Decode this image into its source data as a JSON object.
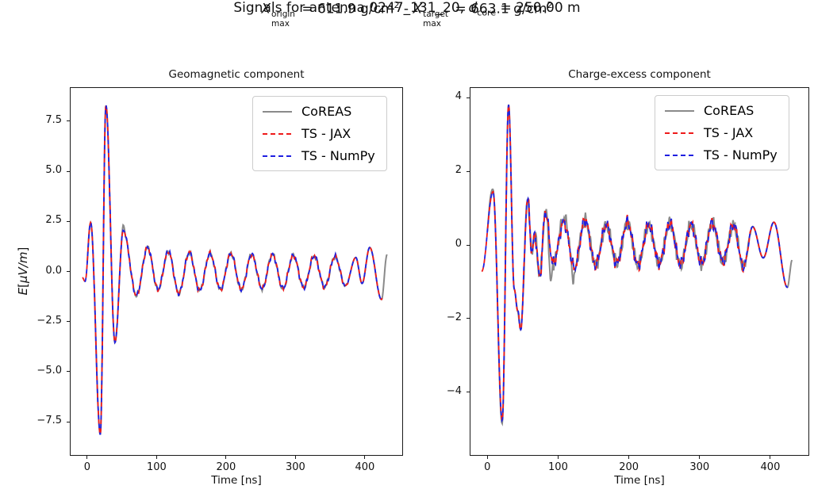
{
  "header": {
    "line1": {
      "text_before": "Signals for antenna 0247_131_20, ",
      "var": "d",
      "sub": "core",
      "text_after": " = 250.00 m"
    },
    "line2": {
      "var1": "X",
      "sup1": "origin",
      "sub1": "max",
      "eq1": " =  611.9 g/cm",
      "exp1": "2",
      "sep": "  -  ",
      "var2": "X",
      "sup2": "target",
      "sub2": "max",
      "eq2": " =  663.1 g/cm",
      "exp2": "2"
    }
  },
  "legend": {
    "entries": [
      {
        "label": "CoREAS",
        "color": "#8a8a8a",
        "style": "solid"
      },
      {
        "label": "TS - JAX",
        "color": "#ee1a1a",
        "style": "dashed"
      },
      {
        "label": "TS - NumPy",
        "color": "#1f1fe0",
        "style": "dashed"
      }
    ]
  },
  "chart_data": [
    {
      "type": "line",
      "title": "Geomagnetic component",
      "xlabel": "Time [ns]",
      "ylabel": "E[μV/m]",
      "ylabel_parts": {
        "e": "E",
        "open": "[",
        "mid": "μV/m",
        "close": "]"
      },
      "xlim": [
        -25,
        455
      ],
      "ylim": [
        -9.2,
        9.2
      ],
      "xtick_values": [
        0,
        100,
        200,
        300,
        400
      ],
      "xtick_labels": [
        "0",
        "100",
        "200",
        "300",
        "400"
      ],
      "ytick_values": [
        -7.5,
        -5.0,
        -2.5,
        0.0,
        2.5,
        5.0,
        7.5
      ],
      "ytick_labels": [
        "−7.5",
        "−5.0",
        "−2.5",
        "0.0",
        "2.5",
        "5.0",
        "7.5"
      ],
      "grid": false,
      "legend_position": "upper right",
      "keypoints": [
        [
          -7,
          -0.3
        ],
        [
          -3,
          -0.5
        ],
        [
          5,
          2.45
        ],
        [
          19,
          -8.15
        ],
        [
          27,
          8.3
        ],
        [
          40,
          -3.55
        ],
        [
          52,
          2.05
        ],
        [
          71,
          -1.2
        ],
        [
          87,
          1.2
        ],
        [
          102,
          -0.9
        ],
        [
          117,
          1.0
        ],
        [
          132,
          -1.1
        ],
        [
          147,
          0.95
        ],
        [
          162,
          -0.95
        ],
        [
          177,
          0.9
        ],
        [
          192,
          -0.9
        ],
        [
          207,
          0.9
        ],
        [
          222,
          -0.9
        ],
        [
          237,
          0.85
        ],
        [
          252,
          -0.85
        ],
        [
          267,
          0.85
        ],
        [
          282,
          -0.85
        ],
        [
          297,
          0.8
        ],
        [
          312,
          -0.8
        ],
        [
          327,
          0.78
        ],
        [
          342,
          -0.78
        ],
        [
          357,
          0.75
        ],
        [
          372,
          -0.72
        ],
        [
          387,
          0.7
        ],
        [
          396,
          -0.6
        ],
        [
          407,
          1.2
        ],
        [
          424,
          -1.4
        ],
        [
          432,
          0.85
        ]
      ],
      "gray_delta": [
        [
          0,
          0
        ],
        [
          49,
          0
        ],
        [
          52,
          0.25
        ],
        [
          55,
          0
        ]
      ],
      "noise": {
        "amplitude": 0.15,
        "window": [
          40,
          360
        ],
        "fade": 25
      },
      "series": [
        {
          "name": "CoREAS",
          "color": "#8a8a8a",
          "style": "solid",
          "width": 2.0,
          "t_range": [
            0,
            432
          ],
          "seed": 1.7,
          "use_delta": true
        },
        {
          "name": "TS - JAX",
          "color": "#ee1a1a",
          "style": "dashed",
          "width": 1.8,
          "t_range": [
            -7,
            425
          ],
          "seed": 4.2,
          "use_delta": false
        },
        {
          "name": "TS - NumPy",
          "color": "#1f1fe0",
          "style": "dashed",
          "width": 1.8,
          "t_range": [
            -7,
            425
          ],
          "seed": 4.2,
          "use_delta": false,
          "dash_offset": 5.5
        }
      ]
    },
    {
      "type": "line",
      "title": "Charge-excess component",
      "xlabel": "Time [ns]",
      "ylabel": "",
      "xlim": [
        -25,
        455
      ],
      "ylim": [
        -5.73,
        4.29
      ],
      "xtick_values": [
        0,
        100,
        200,
        300,
        400
      ],
      "xtick_labels": [
        "0",
        "100",
        "200",
        "300",
        "400"
      ],
      "ytick_values": [
        -4,
        -2,
        0,
        2,
        4
      ],
      "ytick_labels": [
        "−4",
        "−2",
        "0",
        "2",
        "4"
      ],
      "grid": false,
      "legend_position": "upper right",
      "keypoints": [
        [
          -8,
          -0.72
        ],
        [
          8,
          1.45
        ],
        [
          21,
          -4.78
        ],
        [
          30,
          3.82
        ],
        [
          38,
          -1.2
        ],
        [
          43,
          -1.8
        ],
        [
          47,
          -2.3
        ],
        [
          57,
          1.25
        ],
        [
          63,
          -0.2
        ],
        [
          67,
          0.3
        ],
        [
          74,
          -0.85
        ],
        [
          82,
          0.9
        ],
        [
          93,
          -0.5
        ],
        [
          108,
          0.62
        ],
        [
          123,
          -0.62
        ],
        [
          138,
          0.68
        ],
        [
          153,
          -0.55
        ],
        [
          168,
          0.55
        ],
        [
          183,
          -0.5
        ],
        [
          198,
          0.62
        ],
        [
          213,
          -0.55
        ],
        [
          228,
          0.55
        ],
        [
          243,
          -0.5
        ],
        [
          258,
          0.6
        ],
        [
          273,
          -0.52
        ],
        [
          288,
          0.55
        ],
        [
          303,
          -0.5
        ],
        [
          318,
          0.6
        ],
        [
          333,
          -0.45
        ],
        [
          348,
          0.55
        ],
        [
          362,
          -0.6
        ],
        [
          375,
          0.5
        ],
        [
          390,
          -0.35
        ],
        [
          405,
          0.62
        ],
        [
          424,
          -1.15
        ],
        [
          431,
          -0.4
        ]
      ],
      "gray_delta": [
        [
          0,
          0
        ],
        [
          4,
          0.12
        ],
        [
          12,
          0
        ],
        [
          18,
          -0.12
        ],
        [
          25,
          0
        ],
        [
          85,
          0
        ],
        [
          89,
          -0.9
        ],
        [
          93,
          0
        ],
        [
          115,
          0.15
        ],
        [
          121,
          -0.3
        ],
        [
          127,
          0
        ]
      ],
      "noise": {
        "amplitude": 0.22,
        "window": [
          35,
          355
        ],
        "fade": 25
      },
      "series": [
        {
          "name": "CoREAS",
          "color": "#8a8a8a",
          "style": "solid",
          "width": 2.0,
          "t_range": [
            0,
            431
          ],
          "seed": 2.9,
          "use_delta": true
        },
        {
          "name": "TS - JAX",
          "color": "#ee1a1a",
          "style": "dashed",
          "width": 1.8,
          "t_range": [
            -8,
            425
          ],
          "seed": 6.1,
          "use_delta": false
        },
        {
          "name": "TS - NumPy",
          "color": "#1f1fe0",
          "style": "dashed",
          "width": 1.8,
          "t_range": [
            -8,
            425
          ],
          "seed": 6.1,
          "use_delta": false,
          "dash_offset": 5.5
        }
      ]
    }
  ]
}
